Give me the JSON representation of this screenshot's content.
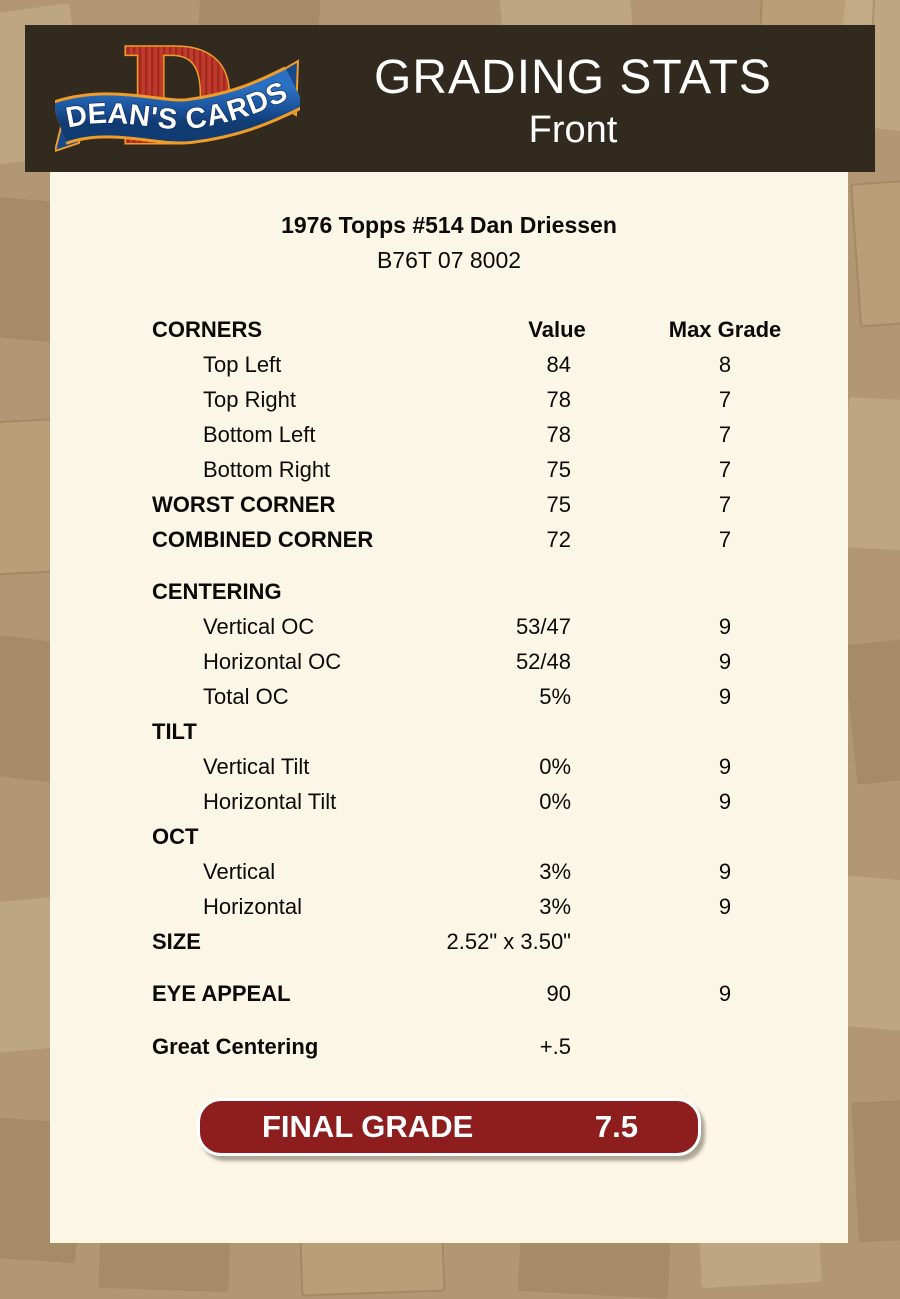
{
  "header": {
    "title": "GRADING STATS",
    "subtitle": "Front",
    "logo_text": "DEAN'S CARDS"
  },
  "card": {
    "title": "1976 Topps #514 Dan Driessen",
    "code": "B76T 07 8002"
  },
  "table": {
    "rows": [
      {
        "kind": "colhead",
        "label": "CORNERS",
        "value": "Value",
        "max": "Max Grade"
      },
      {
        "kind": "item",
        "label": "Top Left",
        "value": "84",
        "max": "8"
      },
      {
        "kind": "item",
        "label": "Top Right",
        "value": "78",
        "max": "7"
      },
      {
        "kind": "item",
        "label": "Bottom Left",
        "value": "78",
        "max": "7"
      },
      {
        "kind": "item",
        "label": "Bottom Right",
        "value": "75",
        "max": "7"
      },
      {
        "kind": "section",
        "label": "WORST CORNER",
        "value": "75",
        "max": "7"
      },
      {
        "kind": "section",
        "label": "COMBINED CORNER",
        "value": "72",
        "max": "7",
        "gap_after": 17
      },
      {
        "kind": "section",
        "label": "CENTERING",
        "value": "",
        "max": ""
      },
      {
        "kind": "item",
        "label": "Vertical OC",
        "value": "53/47",
        "max": "9"
      },
      {
        "kind": "item",
        "label": "Horizontal OC",
        "value": "52/48",
        "max": "9"
      },
      {
        "kind": "item",
        "label": "Total OC",
        "value": "5%",
        "max": "9"
      },
      {
        "kind": "section",
        "label": "TILT",
        "value": "",
        "max": ""
      },
      {
        "kind": "item",
        "label": "Vertical Tilt",
        "value": "0%",
        "max": "9"
      },
      {
        "kind": "item",
        "label": "Horizontal Tilt",
        "value": "0%",
        "max": "9"
      },
      {
        "kind": "section",
        "label": "OCT",
        "value": "",
        "max": ""
      },
      {
        "kind": "item",
        "label": "Vertical",
        "value": "3%",
        "max": "9"
      },
      {
        "kind": "item",
        "label": "Horizontal",
        "value": "3%",
        "max": "9"
      },
      {
        "kind": "section",
        "label": "SIZE",
        "value": "2.52\" x 3.50\"",
        "max": "",
        "gap_after": 17
      },
      {
        "kind": "section",
        "label": "EYE APPEAL",
        "value": "90",
        "max": "9",
        "gap_after": 18
      },
      {
        "kind": "section",
        "label": "Great Centering",
        "value": "+.5",
        "max": ""
      }
    ]
  },
  "final": {
    "label": "FINAL GRADE",
    "value": "7.5"
  },
  "colors": {
    "accent_red": "#8e1d1d",
    "header_bar": "#332a1f",
    "panel_bg": "#fcf6e6",
    "page_bg": "#b29872",
    "logo_red": "#c13a2b",
    "logo_blue": "#1c56a0",
    "logo_gold": "#ef9d28"
  }
}
